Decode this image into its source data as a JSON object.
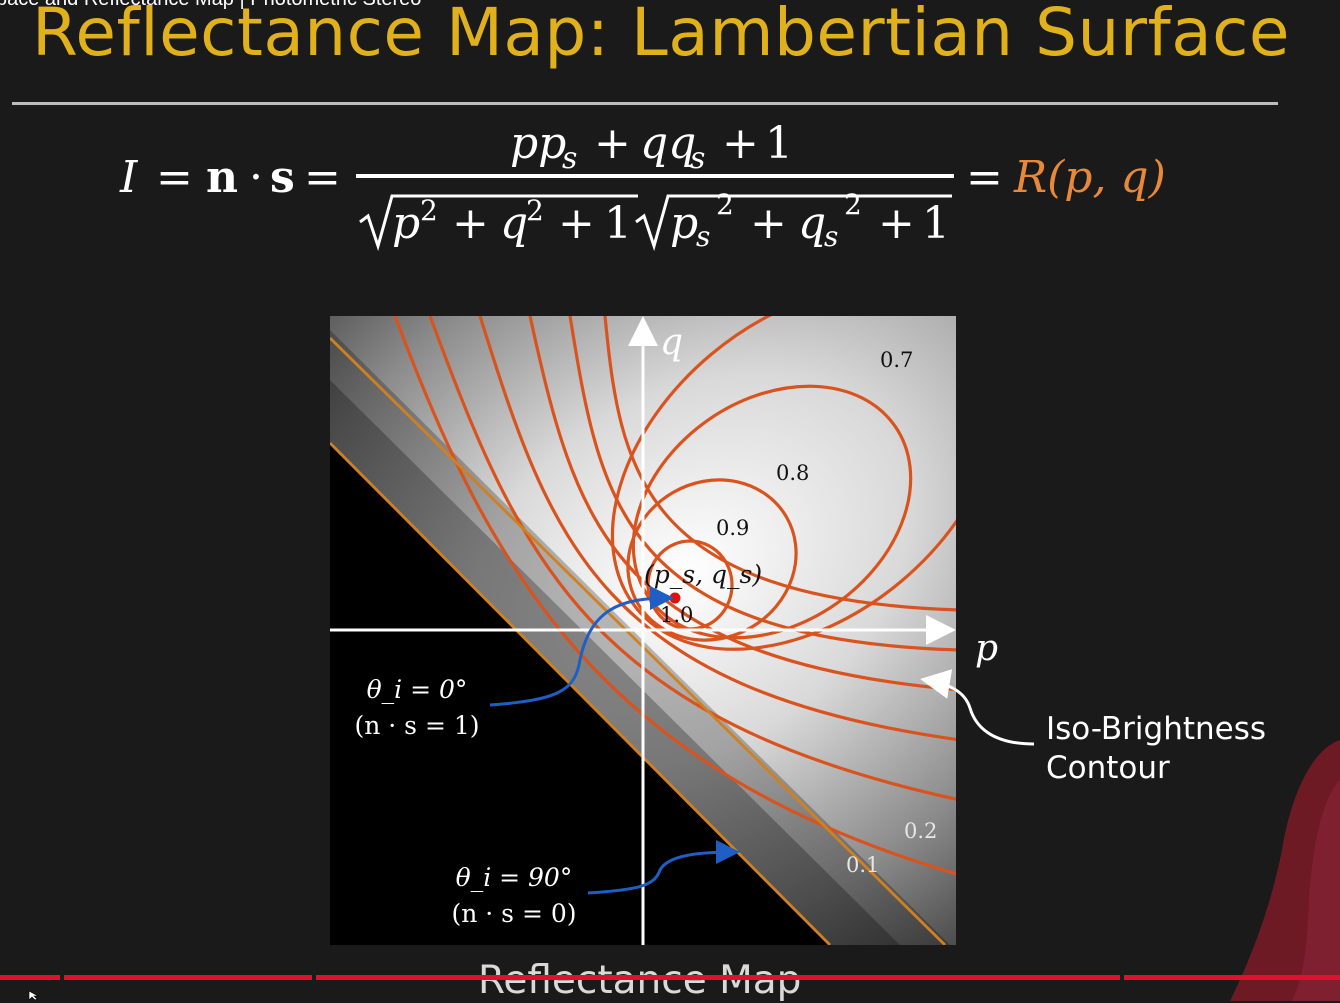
{
  "window": {
    "top_caption": "pace and Reflectance Map | Photometric Stereo"
  },
  "slide": {
    "title": "Reflectance Map: Lambertian Surface",
    "equation": {
      "lhs_I": "I",
      "n": "n",
      "s": "s",
      "numerator": "pp_s + qq_s + 1",
      "denominator": "√(p² + q² + 1) √(p_s² + q_s² + 1)",
      "rhs": "R(p, q)"
    },
    "colors": {
      "title": "#e0b11a",
      "rhs": "#e8893a",
      "contour": "#d9531e",
      "arrow_blue": "#1f5fc4",
      "light_point": "#e01010",
      "progress": "#e1102e"
    }
  },
  "diagram": {
    "axis_p_label": "p",
    "axis_q_label": "q",
    "light_point_label": "(p_s, q_s)",
    "contour_labels": [
      "0.7",
      "0.8",
      "0.9",
      "1.0",
      "0.2",
      "0.1"
    ],
    "annotation_top_line1": "θ_i = 0°",
    "annotation_top_line2": "(n · s = 1)",
    "annotation_bottom_line1": "θ_i = 90°",
    "annotation_bottom_line2": "(n · s = 0)",
    "iso_label_line1": "Iso-Brightness",
    "iso_label_line2": "Contour",
    "caption": "Reflectance Map"
  },
  "icons": {
    "cursor": "cursor-icon",
    "presenter": "presenter-person"
  }
}
